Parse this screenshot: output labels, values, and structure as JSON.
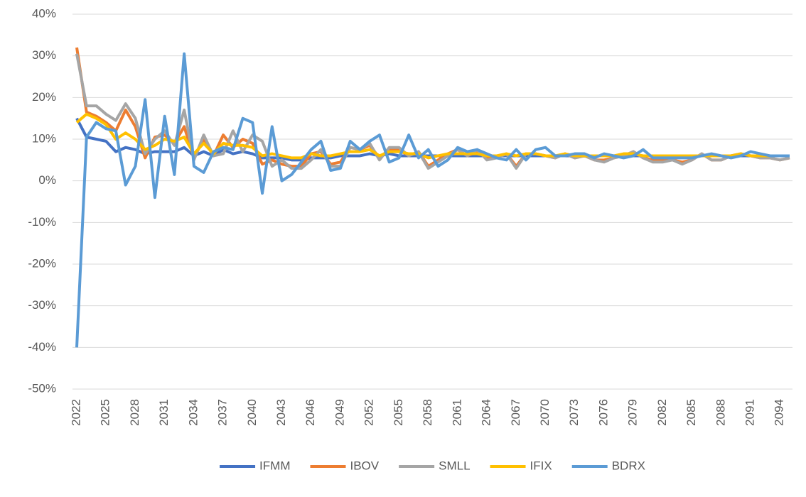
{
  "chart_data": {
    "type": "line",
    "categories": [
      "2022",
      null,
      null,
      "2025",
      null,
      null,
      "2028",
      null,
      null,
      "2031",
      null,
      null,
      "2034",
      null,
      null,
      "2037",
      null,
      null,
      "2040",
      null,
      null,
      "2043",
      null,
      null,
      "2046",
      null,
      null,
      "2049",
      null,
      null,
      "2052",
      null,
      null,
      "2055",
      null,
      null,
      "2058",
      null,
      null,
      "2061",
      null,
      null,
      "2064",
      null,
      null,
      "2067",
      null,
      null,
      "2070",
      null,
      null,
      "2073",
      null,
      null,
      "2076",
      null,
      null,
      "2079",
      null,
      null,
      "2082",
      null,
      null,
      "2085",
      null,
      null,
      "2088",
      null,
      null,
      "2091",
      null,
      null,
      "2094",
      null
    ],
    "series": [
      {
        "name": "IFMM",
        "color": "#4472c4",
        "values": [
          15,
          10.5,
          10,
          9.5,
          7,
          8,
          7.5,
          6.5,
          7,
          7,
          7,
          8,
          6,
          7,
          6,
          7.5,
          6.5,
          7,
          6.5,
          5.5,
          5.5,
          5.5,
          5,
          5,
          5.5,
          5.5,
          5.5,
          6,
          6,
          6,
          6.5,
          6,
          6.5,
          6,
          6,
          6,
          6,
          6,
          6,
          6,
          6,
          6,
          6,
          6,
          6,
          6,
          6,
          6,
          6,
          6,
          6,
          6,
          6,
          6,
          6,
          6,
          6,
          6,
          6,
          6,
          6,
          6,
          6,
          6,
          6,
          6,
          6,
          6,
          6,
          6,
          6,
          6,
          6,
          6
        ]
      },
      {
        "name": "IBOV",
        "color": "#ed7d31",
        "values": [
          32,
          16.5,
          15.5,
          14,
          12,
          17,
          13,
          5.5,
          10.5,
          11,
          9,
          13,
          5.5,
          10,
          6,
          11,
          8,
          10,
          9,
          4,
          5,
          4,
          3.5,
          3.5,
          6.5,
          7,
          4,
          4.5,
          8,
          7.5,
          8.5,
          5.5,
          7.5,
          7.5,
          6,
          7,
          3.5,
          5,
          6.5,
          7.5,
          6,
          7,
          5.5,
          5.5,
          6.5,
          3.5,
          6.5,
          6.5,
          6,
          5.5,
          6.5,
          5.5,
          6,
          5,
          5,
          5.5,
          6,
          7,
          5.5,
          5,
          5,
          5,
          4.5,
          5,
          6.5,
          5,
          5,
          6,
          6.5,
          6,
          5.5,
          5.5,
          5,
          5.5
        ]
      },
      {
        "name": "SMLL",
        "color": "#a5a5a5",
        "values": [
          30.5,
          18,
          18,
          16,
          14.5,
          18.5,
          15,
          6.5,
          10,
          12,
          8.5,
          17,
          5,
          11,
          6,
          6.5,
          12,
          7,
          11,
          9.5,
          3.5,
          5,
          3,
          3,
          5,
          7.5,
          3.5,
          3.5,
          8,
          7.5,
          9,
          5,
          8,
          8,
          6,
          7,
          3,
          4.5,
          6,
          7.5,
          6,
          7.5,
          5,
          5.5,
          6.5,
          3,
          6.5,
          6.5,
          6,
          5.5,
          6.5,
          5.5,
          6,
          5,
          4.5,
          5.5,
          6,
          7,
          5.5,
          4.5,
          4.5,
          5,
          4,
          5,
          6.5,
          5,
          5,
          6,
          6.5,
          6,
          5.5,
          5.5,
          5,
          5.5
        ]
      },
      {
        "name": "IFIX",
        "color": "#ffc000",
        "values": [
          14,
          16,
          15,
          13.5,
          10,
          11.5,
          10,
          7.5,
          8.5,
          10,
          9.5,
          10.5,
          6.5,
          9,
          6.5,
          9,
          8.5,
          8.5,
          8,
          6,
          6.5,
          6,
          5.5,
          5.5,
          6.5,
          6,
          6,
          6.5,
          7,
          7,
          7.5,
          6,
          7,
          7,
          6.5,
          6.5,
          5.5,
          6,
          6.5,
          6.5,
          6.5,
          6.5,
          6,
          6,
          6.5,
          6,
          6.5,
          6.5,
          6,
          6,
          6.5,
          6,
          6,
          6,
          6,
          6,
          6.5,
          6.5,
          6,
          6,
          6,
          6,
          6,
          6,
          6,
          6,
          6,
          6,
          6.5,
          6,
          6,
          6,
          6,
          6
        ]
      },
      {
        "name": "BDRX",
        "color": "#5b9bd5",
        "values": [
          -40,
          10.5,
          14,
          12.5,
          12,
          -1,
          3.5,
          19.5,
          -4,
          15.5,
          1.5,
          30.5,
          3.5,
          2,
          7,
          8,
          7.5,
          15,
          14,
          -3,
          13,
          0,
          1.5,
          4.5,
          7.5,
          9.5,
          2.5,
          3,
          9.5,
          7.5,
          9.5,
          11,
          4.5,
          5.5,
          11,
          5.5,
          7.5,
          3.5,
          5,
          8,
          7,
          7.5,
          6.5,
          5.5,
          5,
          7.5,
          5,
          7.5,
          8,
          6,
          6,
          6.5,
          6.5,
          5.5,
          6.5,
          6,
          5.5,
          6,
          7.5,
          5.5,
          5.5,
          5.5,
          5.5,
          5.5,
          6,
          6.5,
          6,
          5.5,
          6,
          7,
          6.5,
          6,
          6,
          6
        ]
      }
    ],
    "ylim": [
      -50,
      40
    ],
    "yticks": [
      {
        "value": -50,
        "label": "-50%"
      },
      {
        "value": -40,
        "label": "-40%"
      },
      {
        "value": -30,
        "label": "-30%"
      },
      {
        "value": -20,
        "label": "-20%"
      },
      {
        "value": -10,
        "label": "-10%"
      },
      {
        "value": 0,
        "label": "0%"
      },
      {
        "value": 10,
        "label": "10%"
      },
      {
        "value": 20,
        "label": "20%"
      },
      {
        "value": 30,
        "label": "30%"
      },
      {
        "value": 40,
        "label": "40%"
      }
    ],
    "grid": true,
    "legend": "bottom"
  }
}
